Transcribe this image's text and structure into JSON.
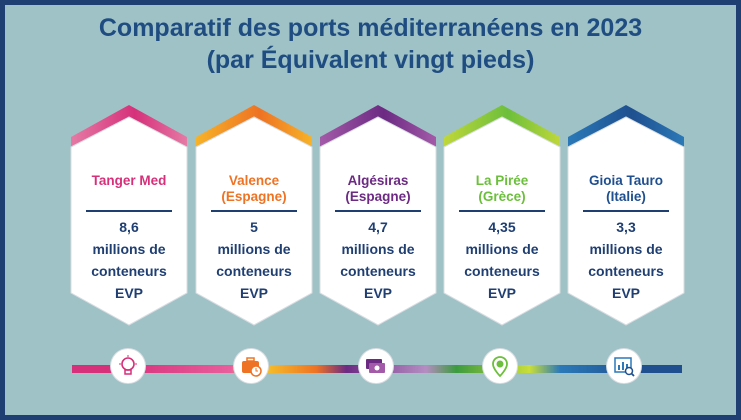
{
  "title": {
    "line1": "Comparatif des ports méditerranéens en 2023",
    "line2": "(par Équivalent vingt pieds)"
  },
  "ports": [
    {
      "name": "Tanger Med",
      "value": "8,6",
      "units": [
        "millions de",
        "conteneurs",
        "EVP"
      ],
      "color": "#d6307a",
      "color2": "#e57aa5",
      "icon": "lightbulb-icon"
    },
    {
      "name": "Valence\n(Espagne)",
      "value": "5",
      "units": [
        "millions de",
        "conteneurs",
        "EVP"
      ],
      "color": "#ee7324",
      "color2": "#f7b227",
      "icon": "briefcase-clock-icon"
    },
    {
      "name": "Algésiras\n(Espagne)",
      "value": "4,7",
      "units": [
        "millions de",
        "conteneurs",
        "EVP"
      ],
      "color": "#6c2a83",
      "color2": "#a35aa8",
      "icon": "money-icon"
    },
    {
      "name": "La Pirée\n(Grèce)",
      "value": "4,35",
      "units": [
        "millions de",
        "conteneurs",
        "EVP"
      ],
      "color": "#6cbf3c",
      "color2": "#bfd73a",
      "icon": "location-pin-icon"
    },
    {
      "name": "Gioia Tauro\n(Italie)",
      "value": "3,3",
      "units": [
        "millions de",
        "conteneurs",
        "EVP"
      ],
      "color": "#1f4f8f",
      "color2": "#2b79b8",
      "icon": "chart-magnifier-icon"
    }
  ],
  "colors": {
    "background": "#9fc2c6",
    "border": "#1f3f73",
    "title": "#1f4d82",
    "text": "#1f3f73"
  }
}
